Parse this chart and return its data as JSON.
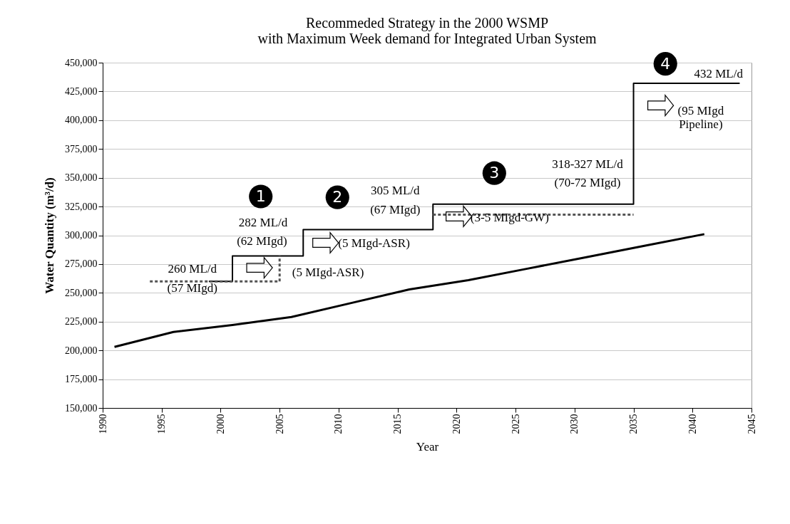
{
  "chart_data": {
    "type": "line",
    "title": "Recommeded Strategy in the 2000 WSMP\nwith Maximum Week demand for Integrated Urban System",
    "xlabel": "Year",
    "ylabel": "Water Quantity (m³/d)",
    "xlim": [
      1990,
      2045
    ],
    "xticks": [
      1990,
      1995,
      2000,
      2005,
      2010,
      2015,
      2020,
      2025,
      2030,
      2035,
      2040,
      2045
    ],
    "ylim": [
      150000,
      450000
    ],
    "yticks": [
      {
        "value": 150000,
        "label": "150,000"
      },
      {
        "value": 175000,
        "label": "175,000"
      },
      {
        "value": 200000,
        "label": "200,000"
      },
      {
        "value": 225000,
        "label": "225,000"
      },
      {
        "value": 250000,
        "label": "250,000"
      },
      {
        "value": 275000,
        "label": "275,000"
      },
      {
        "value": 300000,
        "label": "300,000"
      },
      {
        "value": 325000,
        "label": "325,000"
      },
      {
        "value": 350000,
        "label": "350,000"
      },
      {
        "value": 375000,
        "label": "375,000"
      },
      {
        "value": 400000,
        "label": "400,000"
      },
      {
        "value": 425000,
        "label": "425,000"
      },
      {
        "value": 450000,
        "label": "450,000"
      }
    ],
    "grid": "y",
    "marker": "none",
    "series": [
      {
        "color": "#000000",
        "line_style": "solid",
        "x": [
          1991,
          1996,
          2001,
          2006,
          2011,
          2016,
          2021,
          2026,
          2031,
          2036,
          2041
        ],
        "values": [
          203000,
          216000,
          222000,
          229000,
          241000,
          253000,
          261000,
          271000,
          281000,
          291000,
          301000
        ]
      },
      {
        "type": "step",
        "color": "#000000",
        "line_style": "solid",
        "x": [
          1999,
          2001,
          2007,
          2018,
          2035,
          2044
        ],
        "values": [
          260000,
          282000,
          305000,
          327000,
          432000,
          432000
        ]
      },
      {
        "color": "#555555",
        "line_style": "dashed",
        "x": [
          1994,
          2005,
          2005
        ],
        "values": [
          260000,
          260000,
          282000
        ]
      },
      {
        "color": "#555555",
        "line_style": "dashed",
        "x": [
          2018,
          2035
        ],
        "values": [
          318000,
          318000
        ]
      }
    ],
    "annotations": [
      "1",
      "2",
      "3",
      "4",
      "260 ML/d",
      "(57 MIgd)",
      "282 ML/d",
      "(62 MIgd)",
      "(5 MIgd-ASR)",
      "(5 MIgd-ASR)",
      "305 ML/d",
      "(67 MIgd)",
      "(3-5 MIgd-GW)",
      "318-327 ML/d",
      "(70-72 MIgd)",
      "432 ML/d",
      "(95 MIgd\nPipeline)"
    ]
  }
}
